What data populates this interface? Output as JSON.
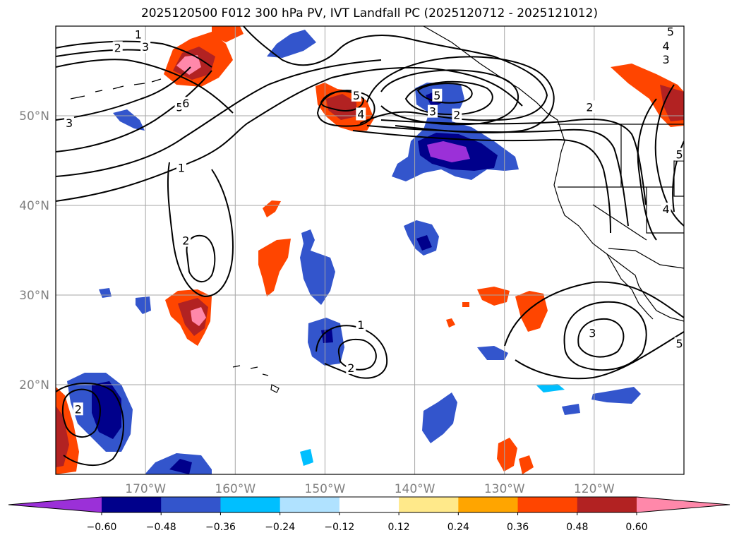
{
  "chart_data": {
    "type": "contour map",
    "title": "2025120500 F012 300 hPa PV, IVT Landfall PC (2025120712 - 2025121012)",
    "lon_range": [
      -180,
      -110
    ],
    "lat_range": [
      10,
      60
    ],
    "lon_ticks": [
      -170,
      -160,
      -150,
      -140,
      -130,
      -120
    ],
    "lon_tick_labels": [
      "170°W",
      "160°W",
      "150°W",
      "140°W",
      "130°W",
      "120°W"
    ],
    "lat_ticks": [
      20,
      30,
      40,
      50
    ],
    "lat_tick_labels": [
      "20°N",
      "30°N",
      "40°N",
      "50°N"
    ],
    "colorbar": {
      "levels": [
        -0.6,
        -0.48,
        -0.36,
        -0.24,
        -0.12,
        0.12,
        0.24,
        0.36,
        0.48,
        0.6
      ],
      "tick_labels": [
        "−0.60",
        "−0.48",
        "−0.36",
        "−0.24",
        "−0.12",
        "0.12",
        "0.24",
        "0.36",
        "0.48",
        "0.60"
      ],
      "colors": [
        "#9b30d8",
        "#00008b",
        "#3355cc",
        "#00bfff",
        "#b0e2ff",
        "#ffffff",
        "#ffe98a",
        "#ffa500",
        "#ff4500",
        "#b22222",
        "#ff88aa"
      ],
      "extend": "both"
    },
    "pv_contour_labels": [
      {
        "label": "1",
        "lon": -170.8,
        "lat": 59.1
      },
      {
        "label": "2",
        "lon": -173.1,
        "lat": 57.6
      },
      {
        "label": "3",
        "lon": -170.0,
        "lat": 57.7
      },
      {
        "label": "3",
        "lon": -178.5,
        "lat": 49.2
      },
      {
        "label": "5",
        "lon": -166.2,
        "lat": 51.0
      },
      {
        "label": "6",
        "lon": -165.5,
        "lat": 51.4
      },
      {
        "label": "1",
        "lon": -166.0,
        "lat": 44.2
      },
      {
        "label": "2",
        "lon": -165.5,
        "lat": 36.1
      },
      {
        "label": "5",
        "lon": -146.5,
        "lat": 52.3
      },
      {
        "label": "4",
        "lon": -146.0,
        "lat": 50.2
      },
      {
        "label": "5",
        "lon": -137.5,
        "lat": 52.3
      },
      {
        "label": "3",
        "lon": -138.0,
        "lat": 50.5
      },
      {
        "label": "2",
        "lon": -135.3,
        "lat": 50.1
      },
      {
        "label": "2",
        "lon": -120.5,
        "lat": 51.0
      },
      {
        "label": "1",
        "lon": -146.0,
        "lat": 26.7
      },
      {
        "label": "2",
        "lon": -147.1,
        "lat": 21.9
      },
      {
        "label": "3",
        "lon": -120.2,
        "lat": 25.8
      },
      {
        "label": "2",
        "lon": -177.5,
        "lat": 17.3
      },
      {
        "label": "5",
        "lon": -111.5,
        "lat": 59.4
      },
      {
        "label": "4",
        "lon": -112.0,
        "lat": 57.8
      },
      {
        "label": "3",
        "lon": -112.0,
        "lat": 56.3
      },
      {
        "label": "5",
        "lon": -110.5,
        "lat": 45.7
      },
      {
        "label": "4",
        "lon": -112.0,
        "lat": 39.6
      },
      {
        "label": "5",
        "lon": -110.5,
        "lat": 24.6
      }
    ]
  }
}
